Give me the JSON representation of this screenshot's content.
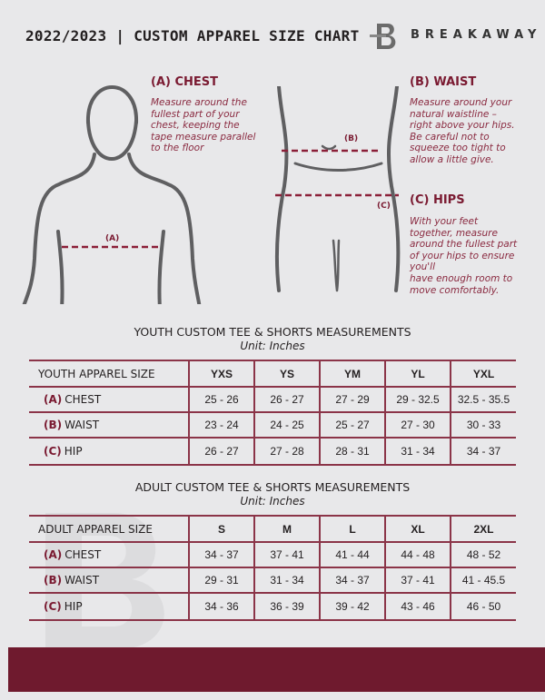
{
  "header": {
    "title": "2022/2023 | CUSTOM APPAREL SIZE CHART",
    "brand": "BREAKAWAY"
  },
  "guides": {
    "chest": {
      "heading": "(A) CHEST",
      "tag": "(A)",
      "text": [
        "Measure around the",
        "fullest part of your",
        "chest, keeping the",
        "tape measure parallel",
        "to the floor"
      ]
    },
    "waist": {
      "heading": "(B) WAIST",
      "tag": "(B)",
      "text": [
        "Measure around your",
        "natural waistline –",
        "right above your hips.",
        "Be careful not to",
        "squeeze too tight to",
        "allow a little give."
      ]
    },
    "hips": {
      "heading": "(C) HIPS",
      "tag": "(C)",
      "text": [
        "With your feet",
        "together, measure",
        "around the fullest part",
        "of your hips to ensure",
        "you'll",
        "have enough room to",
        "move comfortably."
      ]
    }
  },
  "youth": {
    "title": "YOUTH CUSTOM TEE & SHORTS MEASUREMENTS",
    "unit": "Unit: Inches",
    "corner": "YOUTH APPAREL SIZE",
    "sizes": [
      "YXS",
      "YS",
      "YM",
      "YL",
      "YXL"
    ],
    "rows": [
      {
        "tag": "(A)",
        "name": "CHEST",
        "values": [
          "25 - 26",
          "26 - 27",
          "27 - 29",
          "29 - 32.5",
          "32.5 - 35.5"
        ]
      },
      {
        "tag": "(B)",
        "name": "WAIST",
        "values": [
          "23 - 24",
          "24 - 25",
          "25 - 27",
          "27 - 30",
          "30 - 33"
        ]
      },
      {
        "tag": "(C)",
        "name": "HIP",
        "values": [
          "26 - 27",
          "27 - 28",
          "28 - 31",
          "31 - 34",
          "34 - 37"
        ]
      }
    ]
  },
  "adult": {
    "title": "ADULT CUSTOM TEE & SHORTS MEASUREMENTS",
    "unit": "Unit: Inches",
    "corner": "ADULT APPAREL SIZE",
    "sizes": [
      "S",
      "M",
      "L",
      "XL",
      "2XL"
    ],
    "rows": [
      {
        "tag": "(A)",
        "name": "CHEST",
        "values": [
          "34 - 37",
          "37 - 41",
          "41 - 44",
          "44 - 48",
          "48 - 52"
        ]
      },
      {
        "tag": "(B)",
        "name": "WAIST",
        "values": [
          "29 - 31",
          "31 - 34",
          "34 - 37",
          "37 - 41",
          "41 - 45.5"
        ]
      },
      {
        "tag": "(C)",
        "name": "HIP",
        "values": [
          "34 - 36",
          "36 - 39",
          "39 - 42",
          "43 - 46",
          "46 - 50"
        ]
      }
    ]
  },
  "colors": {
    "accent": "#7a1a31",
    "footer": "#6f1a2e",
    "background": "#e8e8ea"
  }
}
